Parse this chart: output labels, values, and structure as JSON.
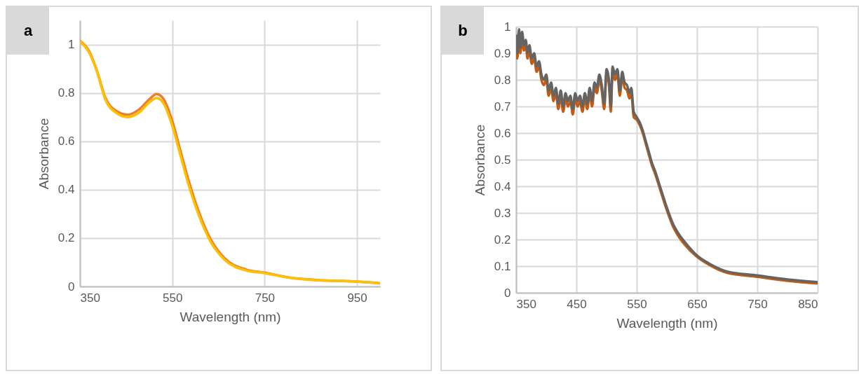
{
  "chart_data": [
    {
      "type": "line",
      "annotations": [
        "a"
      ],
      "xlabel": "Wavelength (nm)",
      "ylabel": "Absorbance",
      "x": [
        350,
        369,
        387,
        405,
        429,
        453,
        477,
        501,
        516,
        531,
        549,
        567,
        585,
        609,
        633,
        663,
        710,
        750,
        800,
        860,
        950,
        1000
      ],
      "series": [
        {
          "color": "#ed7d31",
          "values": [
            1.015,
            0.975,
            0.89,
            0.78,
            0.725,
            0.71,
            0.73,
            0.775,
            0.795,
            0.775,
            0.69,
            0.565,
            0.44,
            0.3,
            0.195,
            0.117,
            0.07,
            0.057,
            0.038,
            0.027,
            0.02,
            0.013
          ]
        },
        {
          "color": "#ffc000",
          "values": [
            1.013,
            0.97,
            0.887,
            0.773,
            0.717,
            0.7,
            0.717,
            0.762,
            0.779,
            0.757,
            0.67,
            0.547,
            0.422,
            0.287,
            0.185,
            0.111,
            0.066,
            0.055,
            0.037,
            0.026,
            0.02,
            0.012
          ]
        }
      ],
      "xlim": [
        350,
        1000
      ],
      "xticks": [
        350,
        550,
        750,
        950
      ],
      "ylim": [
        0,
        1.1
      ],
      "yticks": [
        0,
        0.2,
        0.4,
        0.6,
        0.8,
        1
      ],
      "grid": true
    },
    {
      "type": "line",
      "annotations": [
        "b"
      ],
      "xlabel": "Wavelength (nm)",
      "ylabel": "Absorbance",
      "x": [
        350,
        352,
        355,
        357,
        360,
        363,
        366,
        369,
        372,
        376,
        380,
        384,
        388,
        392,
        396,
        400,
        404,
        408,
        412,
        416,
        420,
        424,
        428,
        432,
        436,
        440,
        444,
        448,
        452,
        456,
        460,
        464,
        468,
        472,
        476,
        480,
        484,
        488,
        492,
        496,
        500,
        504,
        507,
        510,
        514,
        518,
        522,
        526,
        530,
        534,
        538,
        541,
        545,
        550,
        555,
        560,
        565,
        570,
        575,
        580,
        590,
        600,
        610,
        620,
        630,
        650,
        670,
        700,
        750,
        800,
        850
      ],
      "series": [
        {
          "color": "#c55a11",
          "values": [
            0.95,
            0.88,
            0.97,
            0.9,
            0.96,
            0.91,
            0.93,
            0.88,
            0.91,
            0.86,
            0.88,
            0.83,
            0.85,
            0.8,
            0.78,
            0.8,
            0.74,
            0.77,
            0.72,
            0.75,
            0.69,
            0.74,
            0.68,
            0.73,
            0.7,
            0.72,
            0.67,
            0.73,
            0.7,
            0.72,
            0.68,
            0.73,
            0.69,
            0.75,
            0.7,
            0.77,
            0.75,
            0.8,
            0.76,
            0.69,
            0.82,
            0.78,
            0.68,
            0.83,
            0.8,
            0.82,
            0.74,
            0.81,
            0.77,
            0.76,
            0.73,
            0.75,
            0.66,
            0.65,
            0.63,
            0.6,
            0.56,
            0.52,
            0.48,
            0.45,
            0.38,
            0.31,
            0.25,
            0.21,
            0.18,
            0.135,
            0.105,
            0.075,
            0.06,
            0.045,
            0.035
          ]
        },
        {
          "color": "#646464",
          "values": [
            0.97,
            0.9,
            0.99,
            0.92,
            0.98,
            0.93,
            0.95,
            0.9,
            0.93,
            0.88,
            0.9,
            0.85,
            0.87,
            0.82,
            0.8,
            0.82,
            0.76,
            0.79,
            0.74,
            0.77,
            0.71,
            0.76,
            0.7,
            0.75,
            0.72,
            0.74,
            0.69,
            0.75,
            0.72,
            0.74,
            0.7,
            0.75,
            0.71,
            0.77,
            0.72,
            0.79,
            0.77,
            0.82,
            0.78,
            0.71,
            0.84,
            0.8,
            0.7,
            0.85,
            0.82,
            0.84,
            0.76,
            0.83,
            0.79,
            0.78,
            0.75,
            0.77,
            0.68,
            0.66,
            0.64,
            0.61,
            0.57,
            0.53,
            0.49,
            0.46,
            0.39,
            0.32,
            0.26,
            0.22,
            0.19,
            0.14,
            0.11,
            0.08,
            0.065,
            0.05,
            0.04
          ]
        }
      ],
      "xlim": [
        350,
        850
      ],
      "xticks": [
        350,
        450,
        550,
        650,
        750,
        850
      ],
      "ylim": [
        0,
        1
      ],
      "yticks": [
        0,
        0.1,
        0.2,
        0.3,
        0.4,
        0.5,
        0.6,
        0.7,
        0.8,
        0.9,
        1
      ],
      "grid": true
    }
  ]
}
